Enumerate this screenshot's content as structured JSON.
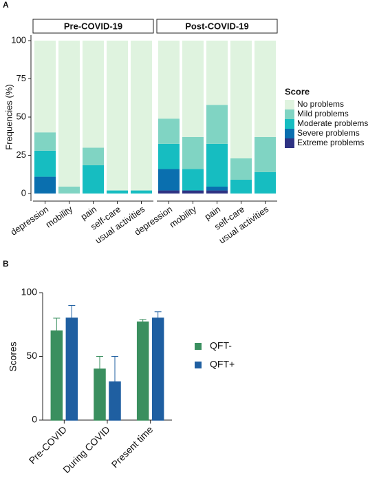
{
  "chart_data": [
    {
      "type": "faceted_stacked_bar",
      "panel": "A",
      "y_label": "Frequencies (%)",
      "facets": [
        "Pre-COVID-19",
        "Post-COVID-19"
      ],
      "categories": [
        "depression",
        "mobility",
        "pain",
        "self-care",
        "usual activities",
        "depression",
        "mobility",
        "pain",
        "self-care",
        "usual activities"
      ],
      "ylim": [
        0,
        100
      ],
      "yticks": [
        0,
        25,
        50,
        75,
        100
      ],
      "legend_title": "Score",
      "series": [
        {
          "name": "No problems",
          "color": "#dff3df",
          "values": [
            60,
            95.5,
            70,
            98,
            98,
            51,
            63,
            42,
            77,
            63
          ]
        },
        {
          "name": "Mild problems",
          "color": "#80d4c3",
          "values": [
            12,
            4.5,
            11.5,
            0,
            0,
            16.5,
            21,
            25.5,
            14,
            23
          ]
        },
        {
          "name": "Moderate problems",
          "color": "#16bdc1",
          "values": [
            17,
            0,
            18.5,
            2,
            2,
            16.5,
            14,
            28,
            9,
            14
          ]
        },
        {
          "name": "Severe problems",
          "color": "#0a6faf",
          "values": [
            11,
            0,
            0,
            0,
            0,
            14,
            0,
            2.5,
            0,
            0
          ]
        },
        {
          "name": "Extreme problems",
          "color": "#2e3283",
          "values": [
            0,
            0,
            0,
            0,
            0,
            2,
            2,
            2,
            0,
            0
          ]
        }
      ]
    },
    {
      "type": "bar",
      "panel": "B",
      "y_label": "Scores",
      "categories": [
        "Pre-COVID",
        "During COVID",
        "Present time"
      ],
      "ylim": [
        0,
        100
      ],
      "yticks": [
        0,
        50,
        100
      ],
      "series": [
        {
          "name": "QFT-",
          "color": "#3a8f5f",
          "values": [
            70,
            40,
            77
          ],
          "errors": [
            10,
            10,
            2
          ]
        },
        {
          "name": "QFT+",
          "color": "#1f5fa1",
          "values": [
            80,
            30,
            80
          ],
          "errors": [
            10,
            20,
            5
          ]
        }
      ]
    }
  ]
}
